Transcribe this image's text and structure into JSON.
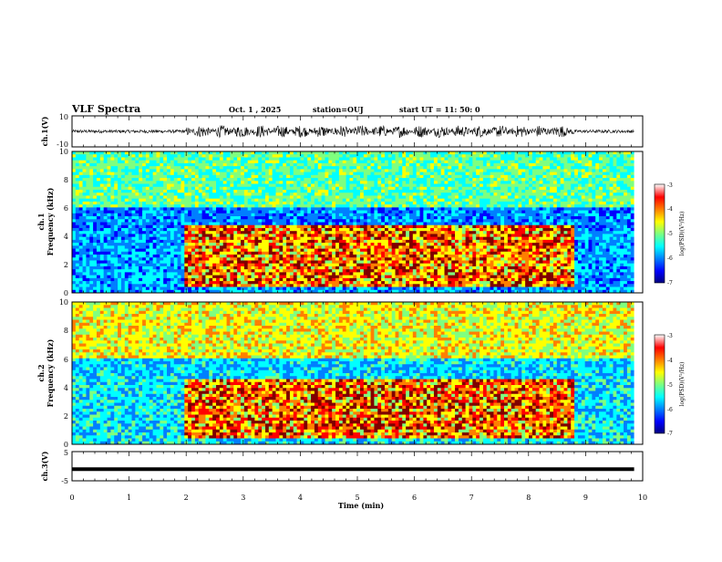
{
  "header": {
    "title": "VLF Spectra",
    "date": "Oct. 1 , 2025",
    "station": "station=OUJ",
    "start": "start UT = 11: 50: 0"
  },
  "chart_data": [
    {
      "type": "line",
      "panel": "ch1-waveform",
      "ylabel": "ch.1(V)",
      "ylim": [
        -10,
        10
      ],
      "yticks": [
        "10",
        "-10"
      ],
      "xlim": [
        0,
        10
      ],
      "description_values": {
        "quiet_amplitude": 1,
        "active_amplitude": 4,
        "active_start_min": 2.0,
        "active_end_min": 8.8
      }
    },
    {
      "type": "heatmap",
      "panel": "ch1-spectrogram",
      "ylabel_line1": "ch.1",
      "ylabel_line2": "Frequency (kHz)",
      "ylim": [
        0,
        10
      ],
      "yticks": [
        "0",
        "2",
        "4",
        "6",
        "8",
        "10"
      ],
      "xlim": [
        0,
        10
      ],
      "colormap": "jet",
      "colorbar": {
        "label": "log(PSD)(V²/Hz)",
        "range": [
          -7,
          -3
        ],
        "ticks": [
          "-3",
          "-4",
          "-5",
          "-6",
          "-7"
        ]
      },
      "signal_band_kHz": [
        0.4,
        4.8
      ],
      "signal_interval_min": [
        2.0,
        8.8
      ]
    },
    {
      "type": "heatmap",
      "panel": "ch2-spectrogram",
      "ylabel_line1": "ch.2",
      "ylabel_line2": "Frequency (kHz)",
      "ylim": [
        0,
        10
      ],
      "yticks": [
        "0",
        "2",
        "4",
        "6",
        "8",
        "10"
      ],
      "xlim": [
        0,
        10
      ],
      "colormap": "jet",
      "colorbar": {
        "label": "log(PSD)(V²/Hz)",
        "range": [
          -7,
          -3
        ],
        "ticks": [
          "-3",
          "-4",
          "-5",
          "-6",
          "-7"
        ]
      },
      "signal_band_kHz": [
        0.4,
        4.6
      ],
      "signal_interval_min": [
        2.0,
        8.8
      ]
    },
    {
      "type": "line",
      "panel": "ch3-waveform",
      "ylabel": "ch.3(V)",
      "ylim": [
        -5,
        5
      ],
      "yticks": [
        "5",
        "-5"
      ],
      "x": [
        0,
        9.85
      ],
      "y": [
        -1,
        -1
      ],
      "xlabel": "Time (min)",
      "xlim": [
        0,
        10
      ],
      "xticks": [
        "0",
        "1",
        "2",
        "3",
        "4",
        "5",
        "6",
        "7",
        "8",
        "9",
        "10"
      ]
    }
  ],
  "colors": {
    "jet": [
      "#00007f",
      "#0000ff",
      "#007fff",
      "#00ffff",
      "#7fff7f",
      "#ffff00",
      "#ff7f00",
      "#ff0000",
      "#7f0000"
    ]
  }
}
